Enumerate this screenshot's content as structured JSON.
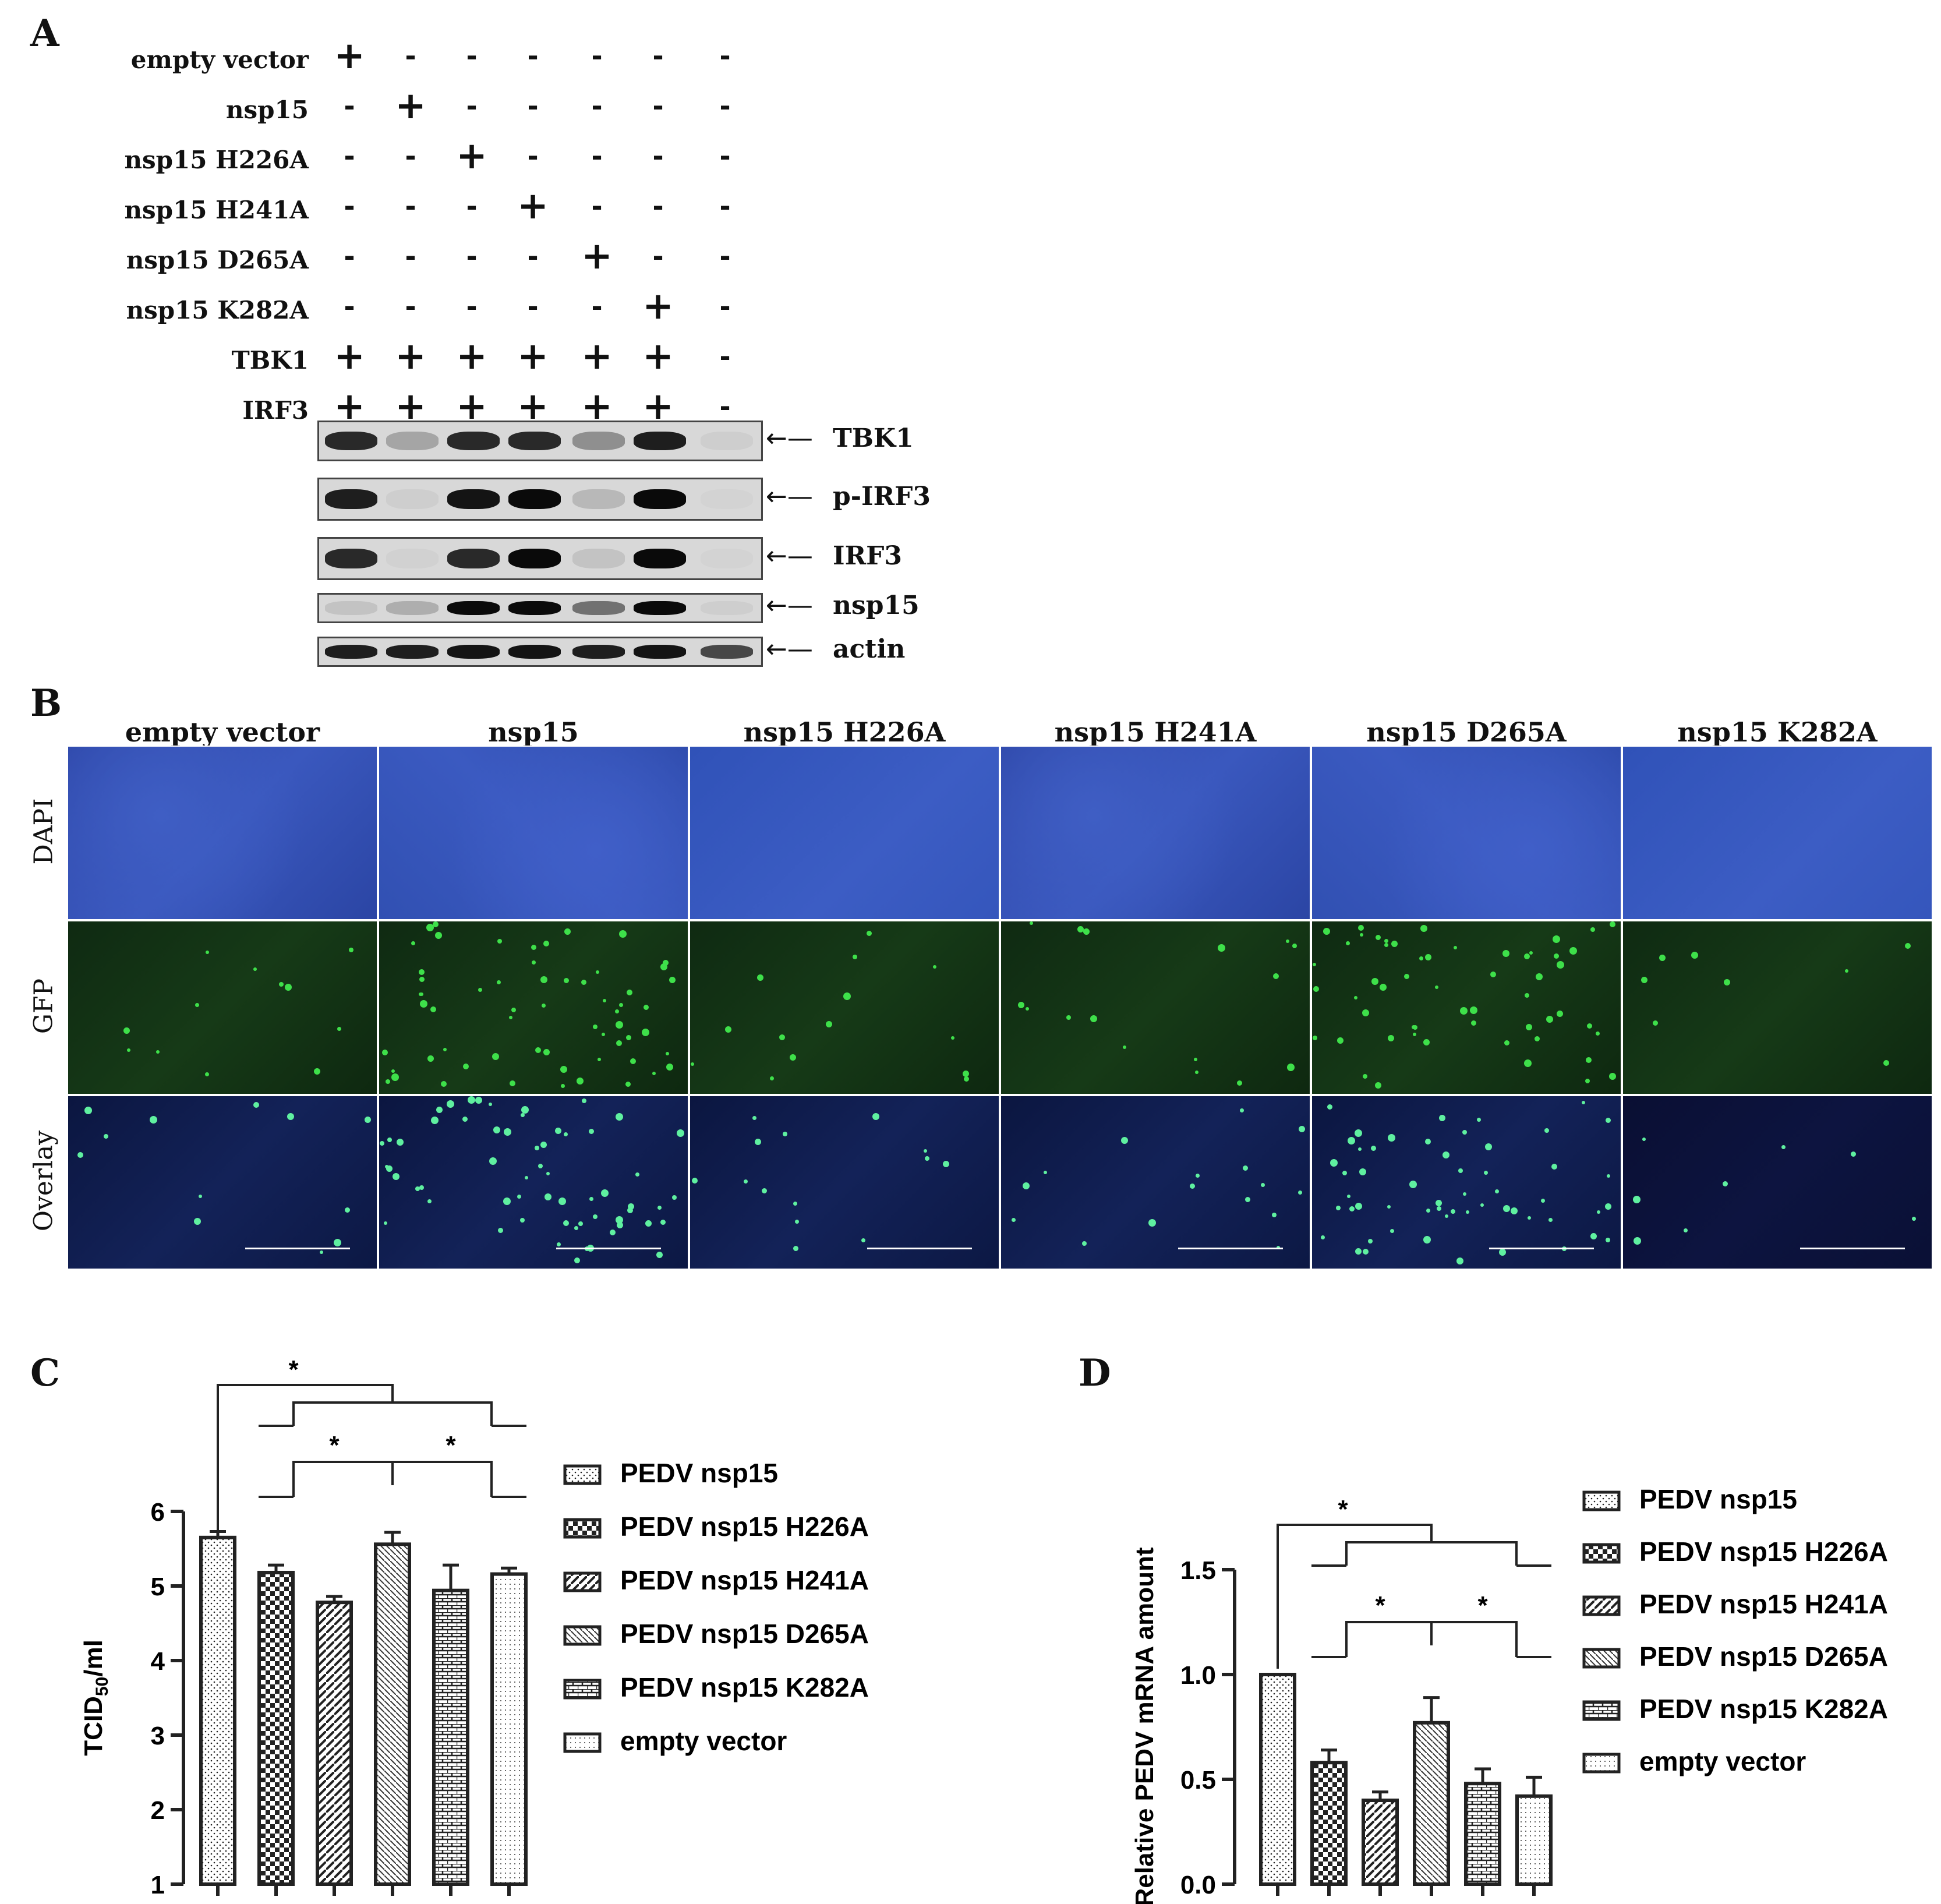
{
  "panels": {
    "a": "A",
    "b": "B",
    "c": "C",
    "d": "D"
  },
  "panel_a": {
    "rows": [
      {
        "label": "empty vector",
        "signs": [
          "+",
          "-",
          "-",
          "-",
          "-",
          "-",
          "-"
        ]
      },
      {
        "label": "nsp15",
        "signs": [
          "-",
          "+",
          "-",
          "-",
          "-",
          "-",
          "-"
        ]
      },
      {
        "label": "nsp15 H226A",
        "signs": [
          "-",
          "-",
          "+",
          "-",
          "-",
          "-",
          "-"
        ]
      },
      {
        "label": "nsp15 H241A",
        "signs": [
          "-",
          "-",
          "-",
          "+",
          "-",
          "-",
          "-"
        ]
      },
      {
        "label": "nsp15 D265A",
        "signs": [
          "-",
          "-",
          "-",
          "-",
          "+",
          "-",
          "-"
        ]
      },
      {
        "label": "nsp15 K282A",
        "signs": [
          "-",
          "-",
          "-",
          "-",
          "-",
          "+",
          "-"
        ]
      },
      {
        "label": "TBK1",
        "signs": [
          "+",
          "+",
          "+",
          "+",
          "+",
          "+",
          "-"
        ]
      },
      {
        "label": "IRF3",
        "signs": [
          "+",
          "+",
          "+",
          "+",
          "+",
          "+",
          "-"
        ]
      }
    ],
    "blots": [
      {
        "label": "TBK1",
        "intensity": [
          0.85,
          0.25,
          0.85,
          0.85,
          0.35,
          0.9,
          0.05
        ]
      },
      {
        "label": "p-IRF3",
        "intensity": [
          0.9,
          0.05,
          0.95,
          1.0,
          0.15,
          1.0,
          0.02
        ]
      },
      {
        "label": "IRF3",
        "intensity": [
          0.85,
          0.03,
          0.85,
          1.0,
          0.1,
          1.0,
          0.02
        ]
      },
      {
        "label": "nsp15",
        "intensity": [
          0.1,
          0.2,
          1.0,
          1.0,
          0.5,
          1.0,
          0.05
        ]
      },
      {
        "label": "actin",
        "intensity": [
          0.9,
          0.9,
          0.95,
          0.95,
          0.9,
          0.95,
          0.7
        ]
      }
    ]
  },
  "panel_b": {
    "columns": [
      "empty vector",
      "nsp15",
      "nsp15 H226A",
      "nsp15 H241A",
      "nsp15 D265A",
      "nsp15 K282A"
    ],
    "rows": [
      "DAPI",
      "GFP",
      "Overlay"
    ]
  },
  "chart_data": [
    {
      "type": "bar",
      "panel": "C",
      "categories": [
        "PEDV nsp15",
        "PEDV nsp15 H226A",
        "PEDV nsp15 H241A",
        "PEDV nsp15 D265A",
        "PEDV nsp15 K282A",
        "empty vector"
      ],
      "values": [
        5.65,
        5.18,
        4.78,
        5.56,
        4.94,
        5.16
      ],
      "errors": [
        0.08,
        0.1,
        0.08,
        0.16,
        0.34,
        0.08
      ],
      "ylabel_main": "TCID",
      "ylabel_sub": "50",
      "ylabel_tail": "/ml",
      "ylim": [
        1,
        6
      ],
      "yticks": [
        "1",
        "2",
        "3",
        "4",
        "5",
        "6"
      ],
      "significance": [
        "*",
        "*",
        "*"
      ],
      "legend": [
        "PEDV nsp15",
        "PEDV nsp15 H226A",
        "PEDV nsp15 H241A",
        "PEDV nsp15 D265A",
        "PEDV nsp15 K282A",
        "empty vector"
      ]
    },
    {
      "type": "bar",
      "panel": "D",
      "categories": [
        "PEDV nsp15",
        "PEDV nsp15 H226A",
        "PEDV nsp15 H241A",
        "PEDV nsp15 D265A",
        "PEDV nsp15 K282A",
        "empty vector"
      ],
      "values": [
        1.0,
        0.58,
        0.4,
        0.77,
        0.48,
        0.42
      ],
      "errors": [
        0.0,
        0.06,
        0.04,
        0.12,
        0.07,
        0.09
      ],
      "ylabel": "Relative PEDV mRNA amount",
      "ylim": [
        0.0,
        1.5
      ],
      "yticks": [
        "0.0",
        "0.5",
        "1.0",
        "1.5"
      ],
      "significance": [
        "*",
        "*",
        "*"
      ],
      "legend": [
        "PEDV nsp15",
        "PEDV nsp15 H226A",
        "PEDV nsp15 H241A",
        "PEDV nsp15 D265A",
        "PEDV nsp15 K282A",
        "empty vector"
      ]
    }
  ]
}
